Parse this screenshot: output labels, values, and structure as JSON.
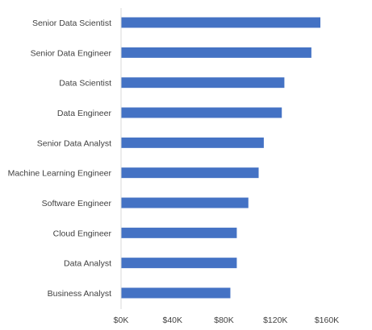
{
  "chart_data": {
    "type": "bar",
    "orientation": "horizontal",
    "categories": [
      "Senior Data Scientist",
      "Senior Data Engineer",
      "Data Scientist",
      "Data Engineer",
      "Senior Data Analyst",
      "Machine Learning Engineer",
      "Software Engineer",
      "Cloud Engineer",
      "Data Analyst",
      "Business Analyst"
    ],
    "values": [
      155000,
      148000,
      127000,
      125000,
      111000,
      107000,
      99000,
      90000,
      90000,
      85000
    ],
    "xlim": [
      0,
      160000
    ],
    "xticks": [
      "$0K",
      "$40K",
      "$80K",
      "$120K",
      "$160K"
    ],
    "title": "",
    "xlabel": "",
    "ylabel": "",
    "legend": "none",
    "grid": false,
    "bar_color": "#4472C4",
    "axis_color": "#D9D9D9"
  }
}
